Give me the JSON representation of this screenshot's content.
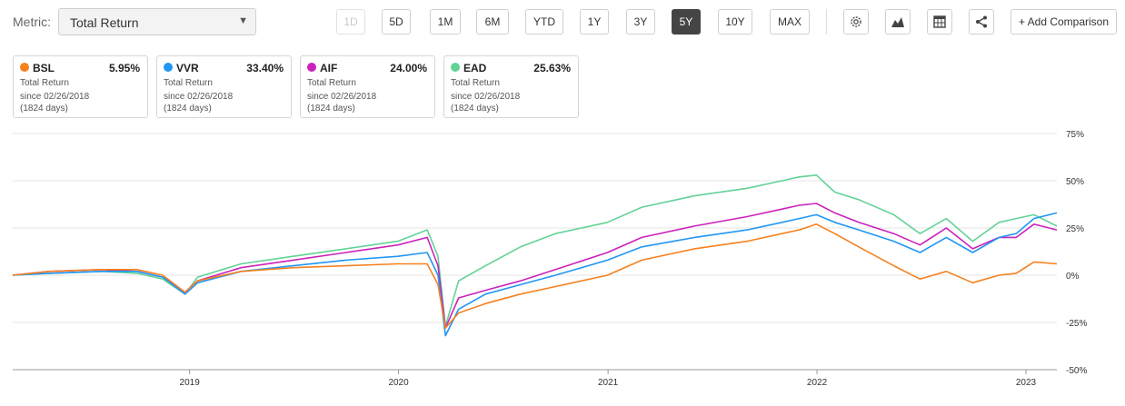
{
  "metric": {
    "label": "Metric:",
    "value": "Total Return"
  },
  "ranges": [
    {
      "label": "1D",
      "state": "disabled"
    },
    {
      "label": "5D",
      "state": "normal"
    },
    {
      "label": "1M",
      "state": "normal"
    },
    {
      "label": "6M",
      "state": "normal"
    },
    {
      "label": "YTD",
      "state": "normal"
    },
    {
      "label": "1Y",
      "state": "normal"
    },
    {
      "label": "3Y",
      "state": "normal"
    },
    {
      "label": "5Y",
      "state": "active"
    },
    {
      "label": "10Y",
      "state": "normal"
    },
    {
      "label": "MAX",
      "state": "normal"
    }
  ],
  "tools": [
    {
      "icon": "gear-icon"
    },
    {
      "icon": "mountain-chart-icon"
    },
    {
      "icon": "table-icon"
    },
    {
      "icon": "share-icon"
    }
  ],
  "add_comparison": "+ Add Comparison",
  "cards": [
    {
      "ticker": "BSL",
      "value": "5.95%",
      "metric": "Total Return",
      "since": "since 02/26/2018",
      "days": "(1824 days)",
      "color": "#f5811f"
    },
    {
      "ticker": "VVR",
      "value": "33.40%",
      "metric": "Total Return",
      "since": "since 02/26/2018",
      "days": "(1824 days)",
      "color": "#2196f3"
    },
    {
      "ticker": "AIF",
      "value": "24.00%",
      "metric": "Total Return",
      "since": "since 02/26/2018",
      "days": "(1824 days)",
      "color": "#cc22bb"
    },
    {
      "ticker": "EAD",
      "value": "25.63%",
      "metric": "Total Return",
      "since": "since 02/26/2018",
      "days": "(1824 days)",
      "color": "#63d297"
    }
  ],
  "chart_data": {
    "type": "line",
    "x_type": "date",
    "xlim": [
      "2018-02-26",
      "2023-02-24"
    ],
    "ylim": [
      -50,
      75
    ],
    "y_ticks": [
      75,
      50,
      25,
      0,
      -25,
      -50
    ],
    "y_tick_labels": [
      "75%",
      "50%",
      "25%",
      "0%",
      "-25%",
      "-50%"
    ],
    "x_ticks": [
      "2019-01-01",
      "2020-01-01",
      "2021-01-01",
      "2022-01-01",
      "2023-01-01"
    ],
    "x_tick_labels": [
      "2019",
      "2020",
      "2021",
      "2022",
      "2023"
    ],
    "grid": true,
    "y_axis_position": "right",
    "series": [
      {
        "name": "BSL",
        "color": "#f5811f",
        "x": [
          "2018-02-26",
          "2018-05-01",
          "2018-08-01",
          "2018-10-01",
          "2018-11-15",
          "2018-12-24",
          "2019-01-15",
          "2019-04-01",
          "2019-07-01",
          "2019-10-01",
          "2019-12-31",
          "2020-02-20",
          "2020-03-10",
          "2020-03-23",
          "2020-04-15",
          "2020-06-01",
          "2020-08-01",
          "2020-10-01",
          "2020-12-31",
          "2021-03-01",
          "2021-06-01",
          "2021-09-01",
          "2021-11-01",
          "2021-12-01",
          "2021-12-31",
          "2022-02-01",
          "2022-03-15",
          "2022-05-15",
          "2022-06-30",
          "2022-08-15",
          "2022-09-30",
          "2022-11-15",
          "2022-12-15",
          "2023-01-15",
          "2023-02-24"
        ],
        "y": [
          0,
          2,
          3,
          3,
          0,
          -9,
          -3,
          2,
          4,
          5,
          6,
          6,
          -5,
          -28,
          -20,
          -15,
          -10,
          -6,
          0,
          8,
          14,
          18,
          22,
          24,
          27,
          22,
          15,
          5,
          -2,
          2,
          -4,
          0,
          1,
          7,
          6
        ]
      },
      {
        "name": "VVR",
        "color": "#2196f3",
        "x": [
          "2018-02-26",
          "2018-05-01",
          "2018-08-01",
          "2018-10-01",
          "2018-11-15",
          "2018-12-24",
          "2019-01-15",
          "2019-04-01",
          "2019-07-01",
          "2019-10-01",
          "2019-12-31",
          "2020-02-20",
          "2020-03-10",
          "2020-03-23",
          "2020-04-15",
          "2020-06-01",
          "2020-08-01",
          "2020-10-01",
          "2020-12-31",
          "2021-03-01",
          "2021-06-01",
          "2021-09-01",
          "2021-11-01",
          "2021-12-01",
          "2021-12-31",
          "2022-02-01",
          "2022-03-15",
          "2022-05-15",
          "2022-06-30",
          "2022-08-15",
          "2022-09-30",
          "2022-11-15",
          "2022-12-15",
          "2023-01-15",
          "2023-02-24"
        ],
        "y": [
          0,
          1,
          2,
          2,
          -1,
          -10,
          -4,
          2,
          5,
          8,
          10,
          12,
          0,
          -32,
          -18,
          -10,
          -5,
          0,
          8,
          15,
          20,
          24,
          28,
          30,
          32,
          28,
          24,
          18,
          12,
          20,
          12,
          20,
          22,
          30,
          33
        ]
      },
      {
        "name": "AIF",
        "color": "#cc22bb",
        "x": [
          "2018-02-26",
          "2018-05-01",
          "2018-08-01",
          "2018-10-01",
          "2018-11-15",
          "2018-12-24",
          "2019-01-15",
          "2019-04-01",
          "2019-07-01",
          "2019-10-01",
          "2019-12-31",
          "2020-02-20",
          "2020-03-10",
          "2020-03-23",
          "2020-04-15",
          "2020-06-01",
          "2020-08-01",
          "2020-10-01",
          "2020-12-31",
          "2021-03-01",
          "2021-06-01",
          "2021-09-01",
          "2021-11-01",
          "2021-12-01",
          "2021-12-31",
          "2022-02-01",
          "2022-03-15",
          "2022-05-15",
          "2022-06-30",
          "2022-08-15",
          "2022-09-30",
          "2022-11-15",
          "2022-12-15",
          "2023-01-15",
          "2023-02-24"
        ],
        "y": [
          0,
          2,
          3,
          2,
          -1,
          -9,
          -3,
          4,
          8,
          12,
          16,
          20,
          5,
          -28,
          -12,
          -8,
          -3,
          3,
          12,
          20,
          26,
          31,
          35,
          37,
          38,
          33,
          28,
          22,
          16,
          25,
          14,
          20,
          20,
          27,
          24
        ]
      },
      {
        "name": "EAD",
        "color": "#63d297",
        "x": [
          "2018-02-26",
          "2018-05-01",
          "2018-08-01",
          "2018-10-01",
          "2018-11-15",
          "2018-12-24",
          "2019-01-15",
          "2019-04-01",
          "2019-07-01",
          "2019-10-01",
          "2019-12-31",
          "2020-02-20",
          "2020-03-10",
          "2020-03-23",
          "2020-04-15",
          "2020-06-01",
          "2020-08-01",
          "2020-10-01",
          "2020-12-31",
          "2021-03-01",
          "2021-06-01",
          "2021-09-01",
          "2021-11-01",
          "2021-12-01",
          "2021-12-31",
          "2022-02-01",
          "2022-03-15",
          "2022-05-15",
          "2022-06-30",
          "2022-08-15",
          "2022-09-30",
          "2022-11-15",
          "2022-12-15",
          "2023-01-15",
          "2023-02-24"
        ],
        "y": [
          0,
          1,
          2,
          1,
          -2,
          -10,
          -1,
          6,
          10,
          14,
          18,
          24,
          10,
          -27,
          -3,
          5,
          15,
          22,
          28,
          36,
          42,
          46,
          50,
          52,
          53,
          44,
          40,
          32,
          22,
          30,
          18,
          28,
          30,
          32,
          26
        ]
      }
    ]
  }
}
